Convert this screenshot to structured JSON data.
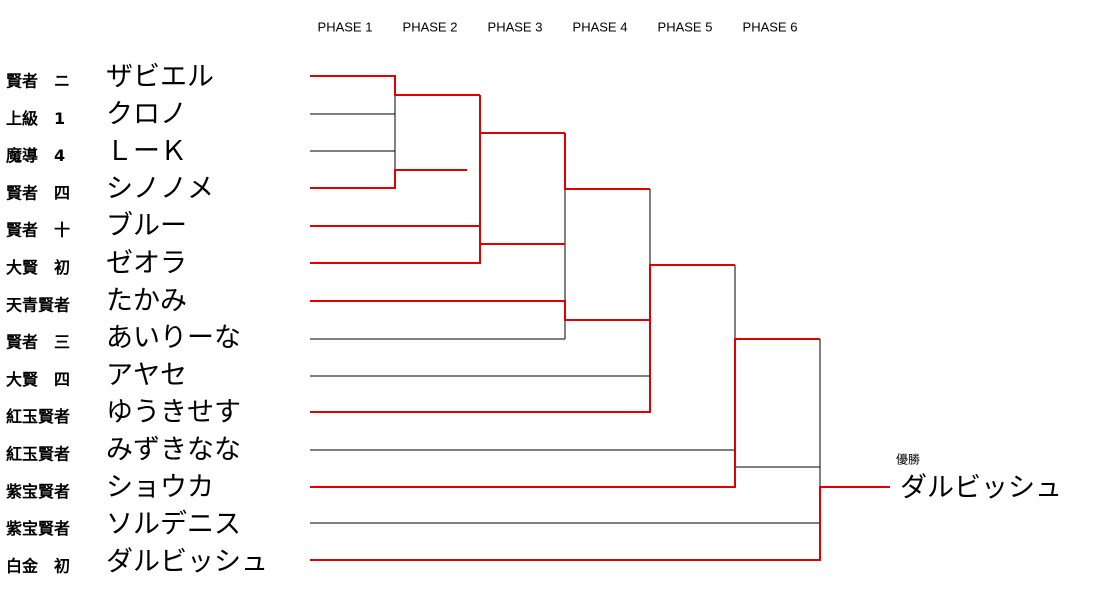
{
  "phases": [
    "PHASE 1",
    "PHASE 2",
    "PHASE 3",
    "PHASE 4",
    "PHASE 5",
    "PHASE 6"
  ],
  "players": [
    {
      "rank": "賢者　ニ",
      "name": "ザビエル"
    },
    {
      "rank": "上級　1",
      "name": "クロノ"
    },
    {
      "rank": "魔導　4",
      "name": "ＬーＫ"
    },
    {
      "rank": "賢者　四",
      "name": "シノノメ"
    },
    {
      "rank": "賢者　十",
      "name": "ブルー"
    },
    {
      "rank": "大賢　初",
      "name": "ゼオラ"
    },
    {
      "rank": "天青賢者",
      "name": "たかみ"
    },
    {
      "rank": "賢者　三",
      "name": "あいりーな"
    },
    {
      "rank": "大賢　四",
      "name": "アヤセ"
    },
    {
      "rank": "紅玉賢者",
      "name": "ゆうきせす"
    },
    {
      "rank": "紅玉賢者",
      "name": "みずきなな"
    },
    {
      "rank": "紫宝賢者",
      "name": "ショウカ"
    },
    {
      "rank": "紫宝賢者",
      "name": "ソルデニス"
    },
    {
      "rank": "白金　初",
      "name": "ダルビッシュ"
    }
  ],
  "winner": {
    "label": "優勝",
    "name": "ダルビッシュ"
  }
}
